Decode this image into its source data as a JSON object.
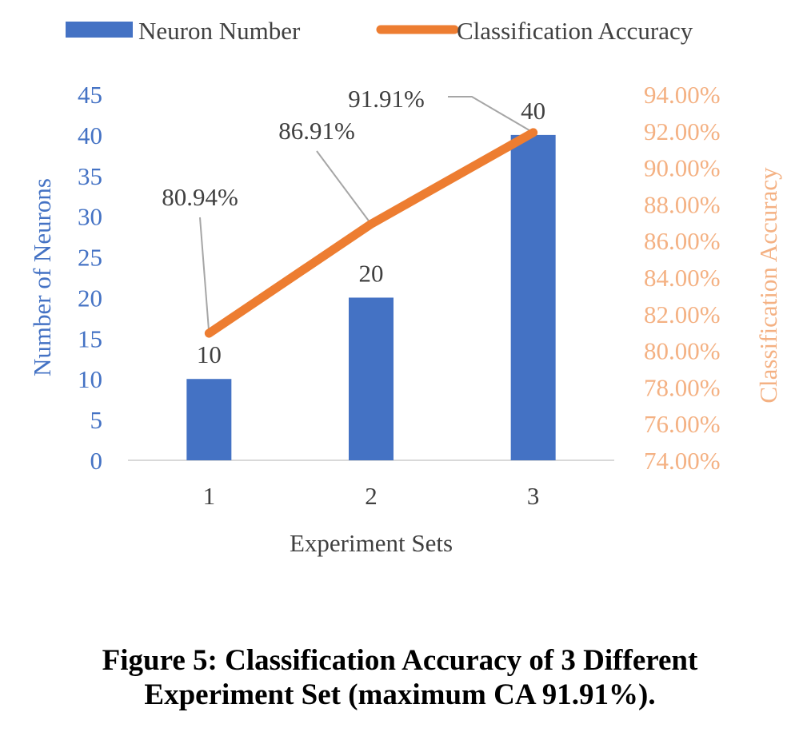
{
  "chart_data": {
    "type": "bar",
    "combo": true,
    "categories": [
      "1",
      "2",
      "3"
    ],
    "series": [
      {
        "name": "Neuron Number",
        "type": "bar",
        "axis": "left",
        "values": [
          10,
          20,
          40
        ],
        "value_labels": [
          "10",
          "20",
          "40"
        ],
        "color": "#4472c4"
      },
      {
        "name": "Classification Accuracy",
        "type": "line",
        "axis": "right",
        "values": [
          80.94,
          86.91,
          91.91
        ],
        "value_labels": [
          "80.94%",
          "86.91%",
          "91.91%"
        ],
        "color": "#ed7d31"
      }
    ],
    "xlabel": "Experiment Sets",
    "ylabel_left": "Number of Neurons",
    "ylabel_right": "Classification Accuracy",
    "ylim_left": [
      0,
      45
    ],
    "yticks_left": [
      "0",
      "5",
      "10",
      "15",
      "20",
      "25",
      "30",
      "35",
      "40",
      "45"
    ],
    "ylim_right": [
      74,
      94
    ],
    "yticks_right": [
      "74.00%",
      "76.00%",
      "78.00%",
      "80.00%",
      "82.00%",
      "84.00%",
      "86.00%",
      "88.00%",
      "90.00%",
      "92.00%",
      "94.00%"
    ],
    "legend_position": "top",
    "grid": false,
    "colors": {
      "left_axis": "#4472c4",
      "right_axis": "#f4b183",
      "text": "#404040",
      "axis_line": "#d9d9d9",
      "leader_line": "#a6a6a6"
    }
  },
  "caption": {
    "line1": "Figure 5: Classification Accuracy of 3 Different",
    "line2": "Experiment Set (maximum CA 91.91%)."
  }
}
